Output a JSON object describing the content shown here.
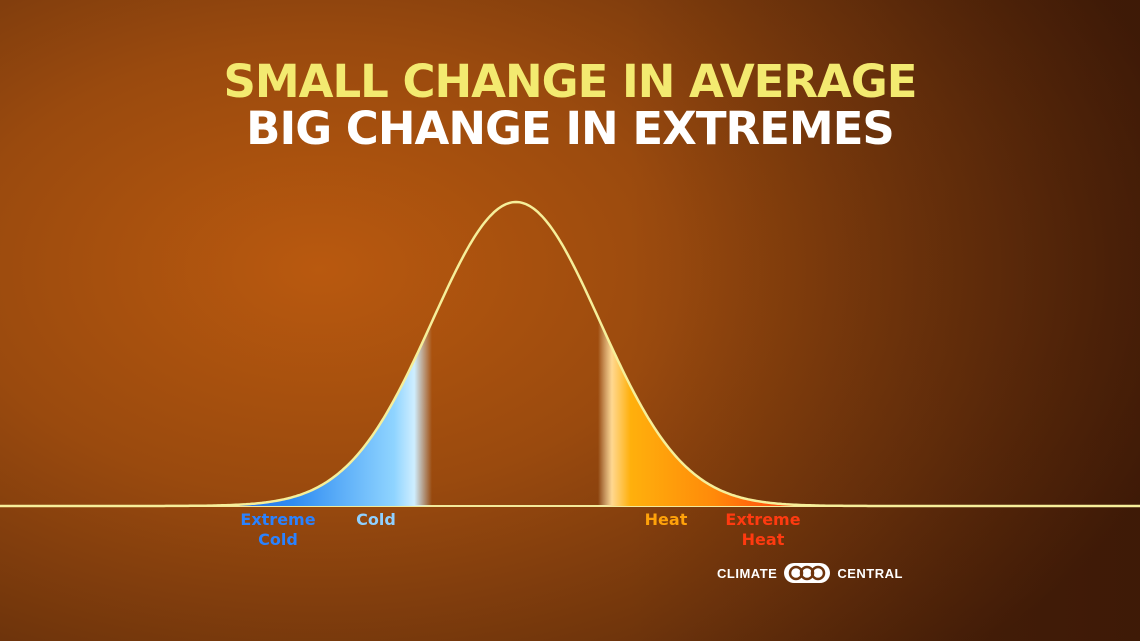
{
  "title": {
    "line1": "SMALL CHANGE IN AVERAGE",
    "line2": "BIG CHANGE IN EXTREMES"
  },
  "labels": {
    "extreme_cold": "Extreme Cold",
    "cold": "Cold",
    "heat": "Heat",
    "extreme_heat": "Extreme Heat"
  },
  "logo": {
    "left_text": "CLIMATE",
    "right_text": "CENTRAL"
  },
  "colors": {
    "title_line1": "#f3ea70",
    "title_line2": "#ffffff",
    "extreme_cold": "#2a82ff",
    "cold": "#8fd0ff",
    "heat": "#ffa20a",
    "extreme_heat": "#ff3a10",
    "curve": "#f6ef9a"
  }
}
